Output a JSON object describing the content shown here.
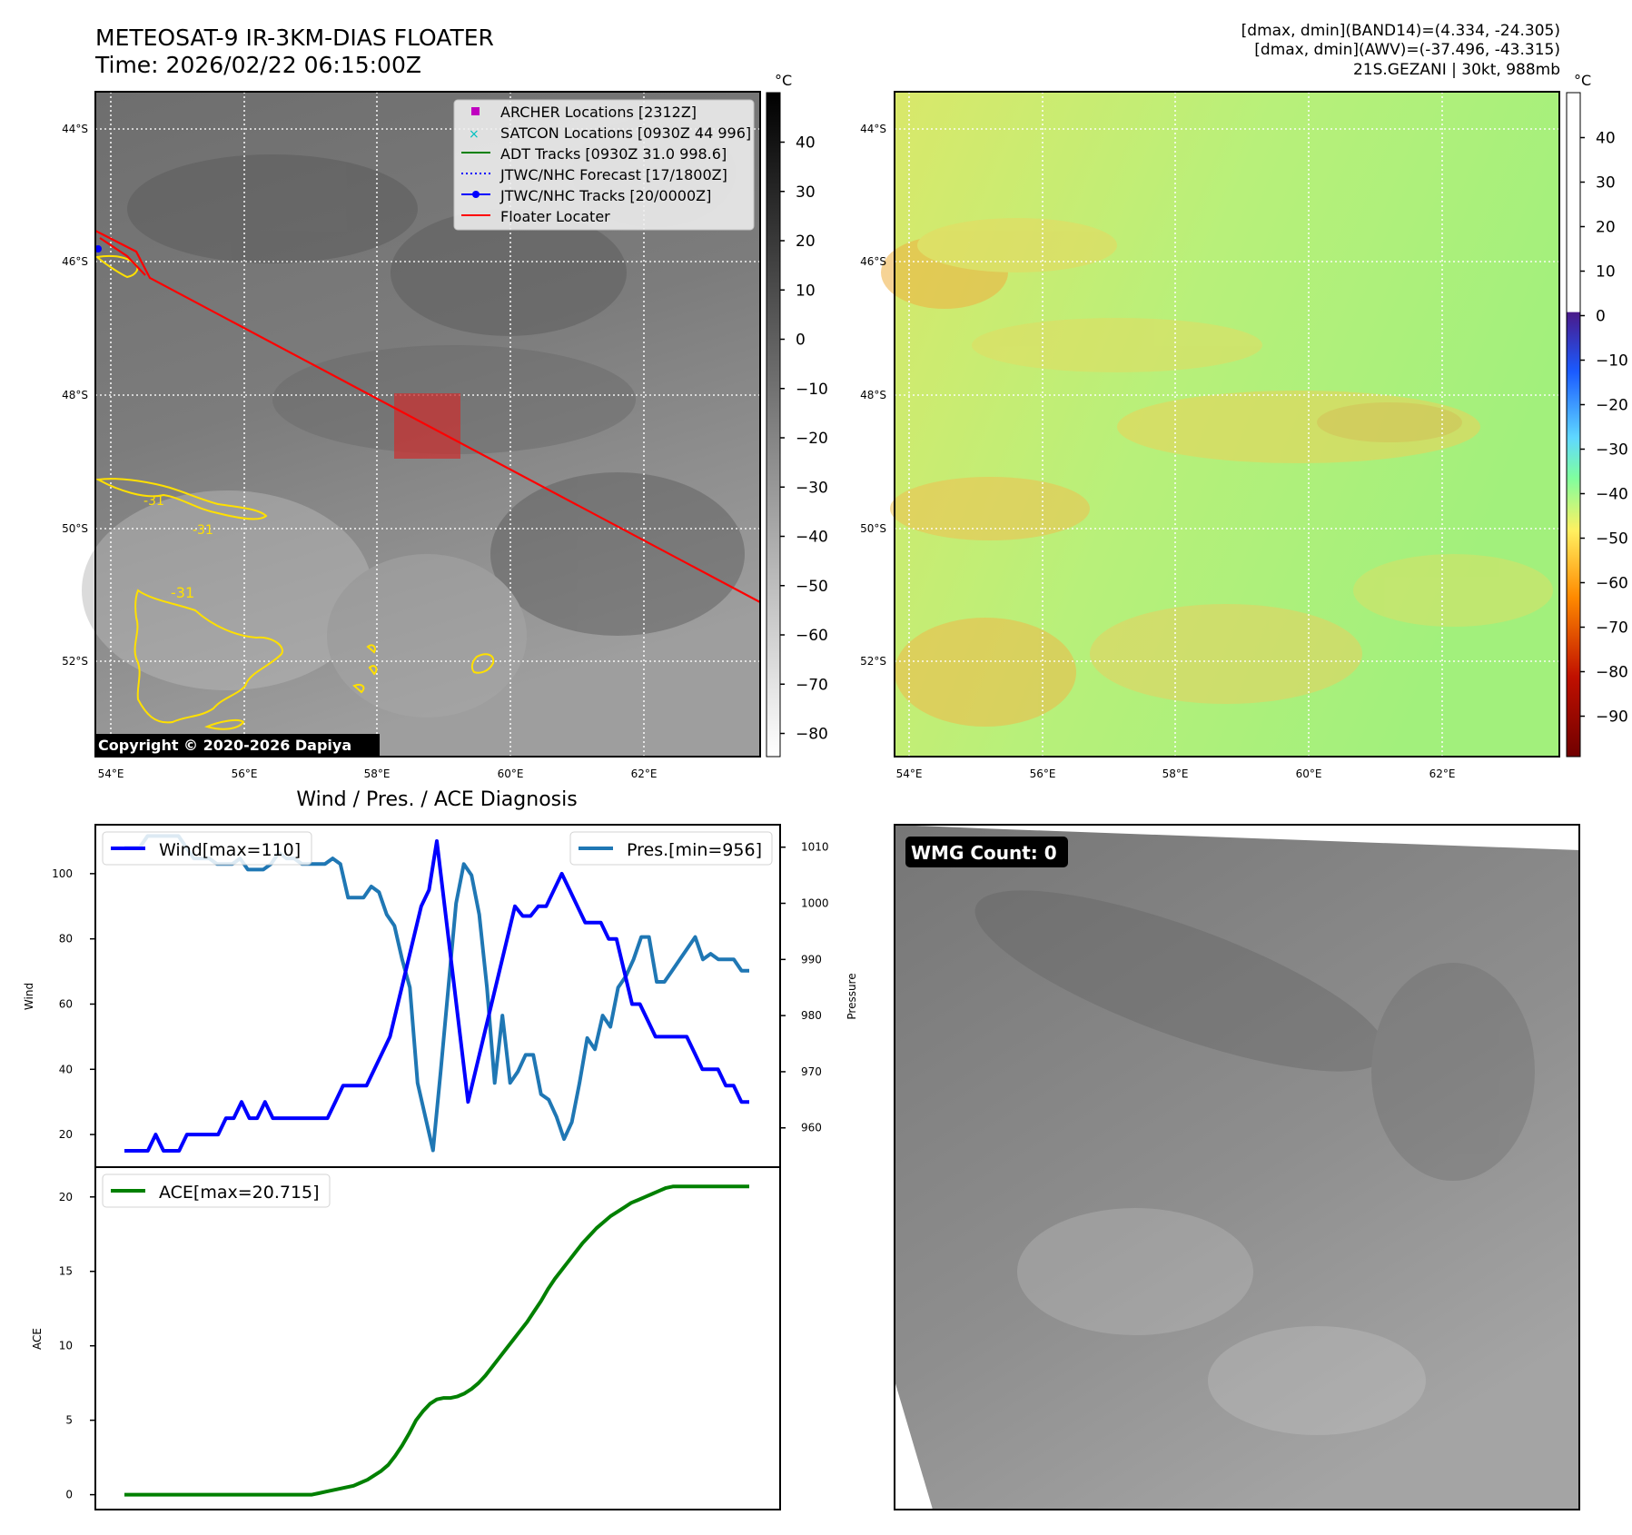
{
  "header": {
    "title_line1": "METEOSAT-9 IR-3KM-DIAS FLOATER",
    "title_line2": "Time: 2026/02/22 06:15:00Z",
    "info_line1": "[dmax, dmin](BAND14)=(4.334, -24.305)",
    "info_line2": "[dmax, dmin](AWV)=(-37.496, -43.315)",
    "info_line3": "21S.GEZANI | 30kt, 988mb"
  },
  "ir_map": {
    "lat_labels": [
      "44°S",
      "46°S",
      "48°S",
      "50°S",
      "52°S"
    ],
    "lon_labels": [
      "54°E",
      "56°E",
      "58°E",
      "60°E",
      "62°E"
    ],
    "contour_labels": [
      "-31",
      "-31",
      "-31"
    ],
    "copyright": "Copyright © 2020-2026 Dapiya",
    "legend": [
      {
        "label": "ARCHER Locations [2312Z]",
        "color": "#c000c0",
        "marker": "square"
      },
      {
        "label": "SATCON Locations [0930Z 44 996]",
        "color": "#00c0c0",
        "marker": "x"
      },
      {
        "label": "ADT Tracks [0930Z 31.0 998.6]",
        "color": "#008000",
        "marker": "line"
      },
      {
        "label": "JTWC/NHC Forecast [17/1800Z]",
        "color": "#0000ff",
        "marker": "dotted"
      },
      {
        "label": "JTWC/NHC Tracks [20/0000Z]",
        "color": "#0000ff",
        "marker": "line-dot"
      },
      {
        "label": "Floater Locater",
        "color": "#ff0000",
        "marker": "line"
      }
    ],
    "colorbar_unit": "°C",
    "colorbar_ticks": [
      "40",
      "30",
      "20",
      "10",
      "0",
      "−10",
      "−20",
      "−30",
      "−40",
      "−50",
      "−60",
      "−70",
      "−80"
    ],
    "track_color": "#ff0000",
    "contour_color": "#ffe000"
  },
  "wv_map": {
    "lat_labels": [
      "44°S",
      "46°S",
      "48°S",
      "50°S",
      "52°S"
    ],
    "lon_labels": [
      "54°E",
      "56°E",
      "58°E",
      "60°E",
      "62°E"
    ],
    "colorbar_unit": "°C",
    "colorbar_ticks": [
      "40",
      "30",
      "20",
      "10",
      "0",
      "−10",
      "−20",
      "−30",
      "−40",
      "−50",
      "−60",
      "−70",
      "−80",
      "−90"
    ]
  },
  "diagnosis": {
    "title": "Wind / Pres. / ACE Diagnosis",
    "wind_label": "Wind",
    "pressure_label": "Pressure",
    "ace_label": "ACE",
    "wind_ticks": [
      "100",
      "80",
      "60",
      "40",
      "20"
    ],
    "pressure_ticks": [
      "1010",
      "1000",
      "990",
      "980",
      "970",
      "960"
    ],
    "ace_ticks": [
      "20",
      "15",
      "10",
      "5",
      "0"
    ],
    "legend_wind": "Wind[max=110]",
    "legend_pres": "Pres.[min=956]",
    "legend_ace": "ACE[max=20.715]"
  },
  "wmg": {
    "badge": "WMG Count: 0"
  },
  "chart_data": [
    {
      "type": "line",
      "title": "Wind / Pres. / ACE Diagnosis",
      "ylabel": "Wind",
      "ylim": [
        10,
        115
      ],
      "series": [
        {
          "name": "Wind[max=110]",
          "color": "#0000ff",
          "values": [
            15,
            15,
            15,
            15,
            20,
            15,
            15,
            15,
            20,
            20,
            20,
            20,
            20,
            25,
            25,
            30,
            25,
            25,
            30,
            25,
            25,
            25,
            25,
            25,
            25,
            25,
            25,
            30,
            35,
            35,
            35,
            35,
            40,
            45,
            50,
            60,
            70,
            80,
            90,
            95,
            110,
            90,
            70,
            50,
            30,
            40,
            50,
            60,
            70,
            80,
            90,
            87,
            87,
            90,
            90,
            95,
            100,
            95,
            90,
            85,
            85,
            85,
            80,
            80,
            70,
            60,
            60,
            55,
            50,
            50,
            50,
            50,
            50,
            45,
            40,
            40,
            40,
            35,
            35,
            30,
            30
          ]
        }
      ]
    },
    {
      "type": "line",
      "ylabel": "Pressure",
      "ylim": [
        953,
        1014
      ],
      "series": [
        {
          "name": "Pres.[min=956]",
          "color": "#1f77b4",
          "values": [
            1010,
            1010,
            1010,
            1012,
            1012,
            1012,
            1012,
            1012,
            1010,
            1008,
            1008,
            1008,
            1007,
            1007,
            1007,
            1008,
            1006,
            1006,
            1006,
            1007,
            1009,
            1008,
            1008,
            1007,
            1007,
            1007,
            1007,
            1008,
            1007,
            1001,
            1001,
            1001,
            1003,
            1002,
            998,
            996,
            990,
            985,
            968,
            962,
            956,
            970,
            985,
            1000,
            1007,
            1005,
            998,
            985,
            968,
            980,
            968,
            970,
            973,
            973,
            966,
            965,
            962,
            958,
            961,
            968,
            976,
            974,
            980,
            978,
            985,
            987,
            990,
            994,
            994,
            986,
            986,
            988,
            990,
            992,
            994,
            990,
            991,
            990,
            990,
            990,
            988,
            988
          ]
        }
      ]
    },
    {
      "type": "line",
      "ylabel": "ACE",
      "ylim": [
        -1,
        22
      ],
      "series": [
        {
          "name": "ACE[max=20.715]",
          "color": "#008000",
          "values": [
            0,
            0,
            0,
            0,
            0,
            0,
            0,
            0,
            0,
            0,
            0,
            0,
            0,
            0,
            0,
            0,
            0,
            0,
            0,
            0,
            0,
            0,
            0,
            0,
            0,
            0,
            0,
            0,
            0.1,
            0.2,
            0.3,
            0.4,
            0.5,
            0.6,
            0.8,
            1.0,
            1.3,
            1.6,
            2.0,
            2.6,
            3.3,
            4.1,
            5.0,
            5.6,
            6.1,
            6.4,
            6.5,
            6.5,
            6.6,
            6.8,
            7.1,
            7.5,
            8.0,
            8.6,
            9.2,
            9.8,
            10.4,
            11.0,
            11.6,
            12.3,
            13.0,
            13.8,
            14.5,
            15.1,
            15.7,
            16.3,
            16.9,
            17.4,
            17.9,
            18.3,
            18.7,
            19.0,
            19.3,
            19.6,
            19.8,
            20.0,
            20.2,
            20.4,
            20.6,
            20.7,
            20.7,
            20.7,
            20.7,
            20.7,
            20.7,
            20.7,
            20.7,
            20.7,
            20.7,
            20.7,
            20.7
          ]
        }
      ]
    }
  ]
}
